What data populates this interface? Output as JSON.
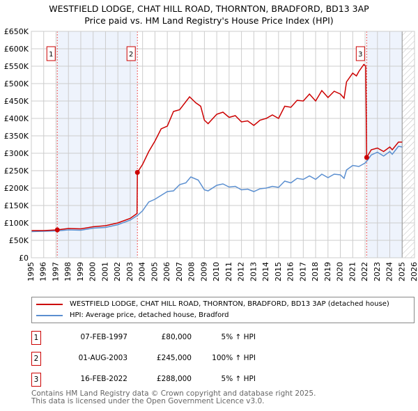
{
  "chart_data": {
    "type": "line",
    "title": "WESTFIELD LODGE, CHAT HILL ROAD, THORNTON, BRADFORD, BD13 3AP",
    "subtitle": "Price paid vs. HM Land Registry's House Price Index (HPI)",
    "xlim": [
      1995,
      2026
    ],
    "ylim": [
      0,
      650000
    ],
    "x_ticks": [
      "1995",
      "1996",
      "1997",
      "1998",
      "1999",
      "2000",
      "2001",
      "2002",
      "2003",
      "2004",
      "2005",
      "2006",
      "2007",
      "2008",
      "2009",
      "2010",
      "2011",
      "2012",
      "2013",
      "2014",
      "2015",
      "2016",
      "2017",
      "2018",
      "2019",
      "2020",
      "2021",
      "2022",
      "2023",
      "2024",
      "2025",
      "2026"
    ],
    "y_ticks": [
      "£0",
      "£50K",
      "£100K",
      "£150K",
      "£200K",
      "£250K",
      "£300K",
      "£350K",
      "£400K",
      "£450K",
      "£500K",
      "£550K",
      "£600K",
      "£650K"
    ],
    "grid": true,
    "series": [
      {
        "name": "WESTFIELD LODGE, CHAT HILL ROAD, THORNTON, BRADFORD, BD13 3AP (detached house)",
        "color": "#cc0000",
        "points": [
          [
            1995,
            78
          ],
          [
            1996,
            78
          ],
          [
            1997.1,
            80
          ],
          [
            1998,
            84
          ],
          [
            1999,
            83
          ],
          [
            2000,
            89
          ],
          [
            2001,
            92
          ],
          [
            2002,
            100
          ],
          [
            2003,
            113
          ],
          [
            2003.55,
            127
          ],
          [
            2003.58,
            245
          ],
          [
            2004,
            268
          ],
          [
            2004.5,
            305
          ],
          [
            2005,
            335
          ],
          [
            2005.5,
            370
          ],
          [
            2006,
            378
          ],
          [
            2006.5,
            420
          ],
          [
            2007,
            425
          ],
          [
            2007.8,
            462
          ],
          [
            2008.3,
            445
          ],
          [
            2008.7,
            435
          ],
          [
            2009,
            395
          ],
          [
            2009.3,
            385
          ],
          [
            2010,
            412
          ],
          [
            2010.5,
            418
          ],
          [
            2011,
            403
          ],
          [
            2011.5,
            408
          ],
          [
            2012,
            390
          ],
          [
            2012.5,
            393
          ],
          [
            2013,
            380
          ],
          [
            2013.5,
            395
          ],
          [
            2014,
            400
          ],
          [
            2014.5,
            410
          ],
          [
            2015,
            400
          ],
          [
            2015.5,
            435
          ],
          [
            2016,
            432
          ],
          [
            2016.5,
            452
          ],
          [
            2017,
            450
          ],
          [
            2017.5,
            470
          ],
          [
            2018,
            450
          ],
          [
            2018.5,
            480
          ],
          [
            2019,
            460
          ],
          [
            2019.5,
            478
          ],
          [
            2020,
            470
          ],
          [
            2020.3,
            458
          ],
          [
            2020.5,
            505
          ],
          [
            2021,
            530
          ],
          [
            2021.3,
            522
          ],
          [
            2021.5,
            535
          ],
          [
            2021.9,
            555
          ],
          [
            2022.05,
            550
          ],
          [
            2022.13,
            288
          ],
          [
            2022.5,
            310
          ],
          [
            2023,
            315
          ],
          [
            2023.5,
            305
          ],
          [
            2024,
            318
          ],
          [
            2024.2,
            310
          ],
          [
            2024.7,
            332
          ],
          [
            2025,
            332
          ]
        ]
      },
      {
        "name": "HPI: Average price, detached house, Bradford",
        "color": "#5b8fd0",
        "points": [
          [
            1995,
            75
          ],
          [
            1996,
            76
          ],
          [
            1997,
            77
          ],
          [
            1998,
            80
          ],
          [
            1999,
            79
          ],
          [
            2000,
            85
          ],
          [
            2001,
            87
          ],
          [
            2002,
            95
          ],
          [
            2003,
            108
          ],
          [
            2003.6,
            122
          ],
          [
            2004,
            135
          ],
          [
            2004.5,
            160
          ],
          [
            2005,
            168
          ],
          [
            2006,
            190
          ],
          [
            2006.5,
            192
          ],
          [
            2007,
            210
          ],
          [
            2007.5,
            215
          ],
          [
            2007.9,
            232
          ],
          [
            2008.5,
            223
          ],
          [
            2009,
            195
          ],
          [
            2009.3,
            192
          ],
          [
            2010,
            208
          ],
          [
            2010.5,
            212
          ],
          [
            2011,
            203
          ],
          [
            2011.5,
            205
          ],
          [
            2012,
            195
          ],
          [
            2012.5,
            197
          ],
          [
            2013,
            190
          ],
          [
            2013.5,
            198
          ],
          [
            2014,
            200
          ],
          [
            2014.5,
            205
          ],
          [
            2015,
            202
          ],
          [
            2015.5,
            220
          ],
          [
            2016,
            215
          ],
          [
            2016.5,
            228
          ],
          [
            2017,
            225
          ],
          [
            2017.5,
            235
          ],
          [
            2018,
            225
          ],
          [
            2018.5,
            240
          ],
          [
            2019,
            230
          ],
          [
            2019.5,
            240
          ],
          [
            2020,
            238
          ],
          [
            2020.3,
            228
          ],
          [
            2020.5,
            252
          ],
          [
            2021,
            265
          ],
          [
            2021.5,
            262
          ],
          [
            2022,
            272
          ],
          [
            2022.2,
            280
          ],
          [
            2022.5,
            295
          ],
          [
            2023,
            303
          ],
          [
            2023.5,
            292
          ],
          [
            2024,
            305
          ],
          [
            2024.2,
            297
          ],
          [
            2024.7,
            320
          ],
          [
            2025,
            318
          ]
        ]
      }
    ],
    "point_units": "£ thousands",
    "sales": [
      {
        "label": "1",
        "x": 1997.1,
        "y": 80
      },
      {
        "label": "2",
        "x": 2003.58,
        "y": 245
      },
      {
        "label": "3",
        "x": 2022.13,
        "y": 288
      }
    ]
  },
  "legend": {
    "red": "WESTFIELD LODGE, CHAT HILL ROAD, THORNTON, BRADFORD, BD13 3AP (detached house)",
    "blue": "HPI: Average price, detached house, Bradford"
  },
  "transactions": [
    {
      "n": "1",
      "date": "07-FEB-1997",
      "price": "£80,000",
      "hpi": "5% ↑ HPI"
    },
    {
      "n": "2",
      "date": "01-AUG-2003",
      "price": "£245,000",
      "hpi": "100% ↑ HPI"
    },
    {
      "n": "3",
      "date": "16-FEB-2022",
      "price": "£288,000",
      "hpi": "5% ↑ HPI"
    }
  ],
  "footer": {
    "line1": "Contains HM Land Registry data © Crown copyright and database right 2025.",
    "line2": "This data is licensed under the Open Government Licence v3.0."
  }
}
